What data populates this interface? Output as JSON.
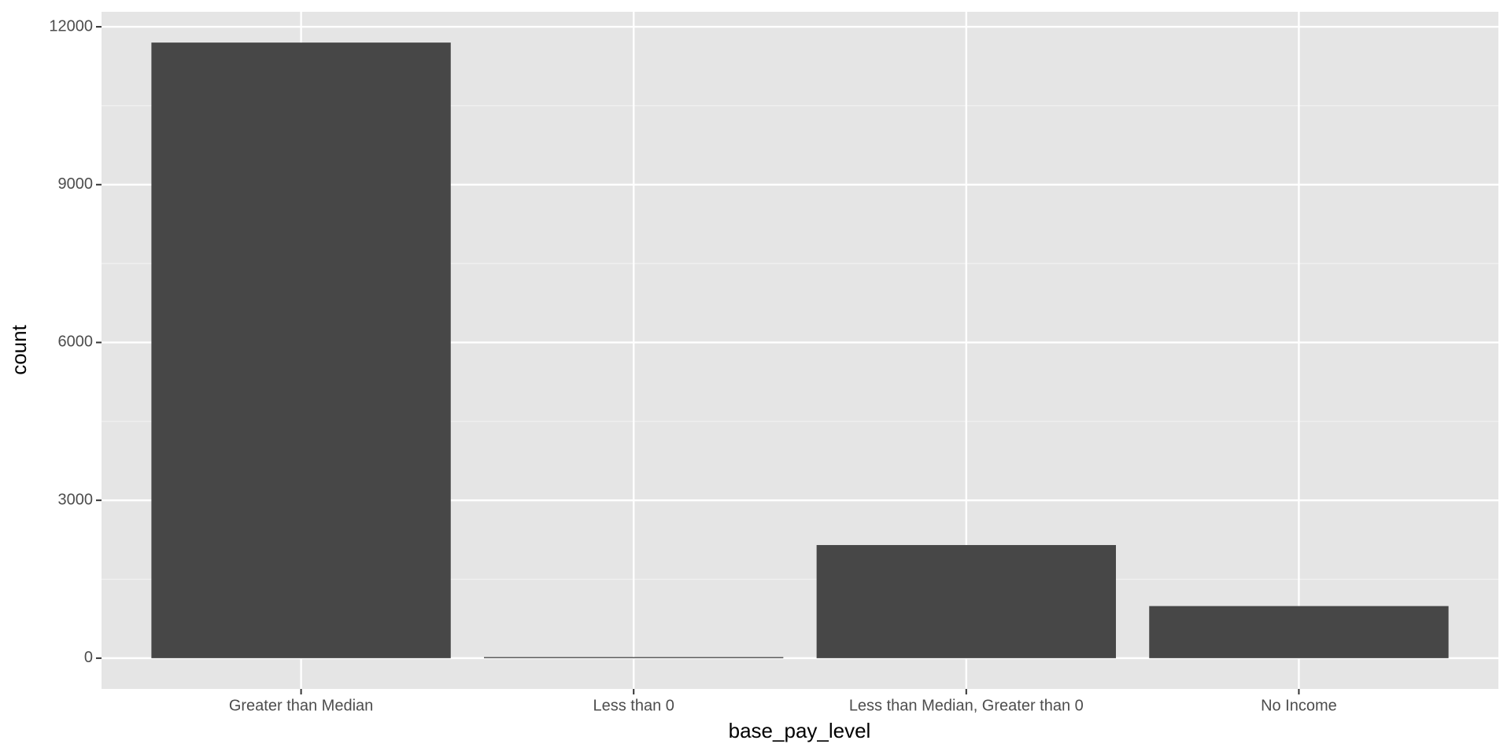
{
  "chart_data": {
    "type": "bar",
    "x_label": "base_pay_level",
    "y_label": "count",
    "categories": [
      "Greater than Median",
      "Less than 0",
      "Less than Median, Greater than 0",
      "No Income"
    ],
    "values": [
      11700,
      20,
      2150,
      990
    ],
    "color": "#474747",
    "ylim": [
      -585,
      12285
    ],
    "yticks": [
      0,
      3000,
      6000,
      9000,
      12000
    ],
    "grid": true
  }
}
